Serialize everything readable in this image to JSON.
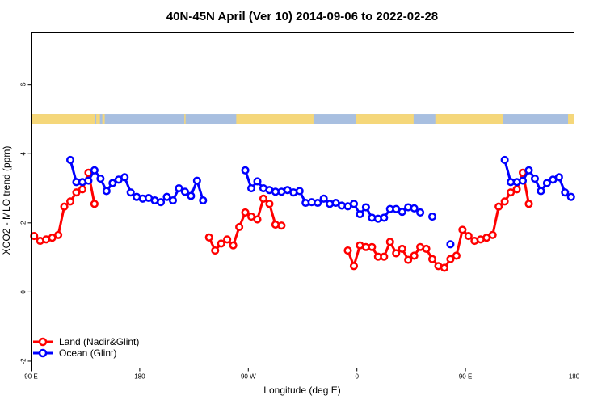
{
  "chart_data": {
    "type": "line",
    "title": "40N-45N April (Ver 10)   2014-09-06 to 2022-02-28",
    "xlabel": "Longitude (deg E)",
    "ylabel": "XCO2 - MLO trend (ppm)",
    "xlim": [
      90,
      540
    ],
    "ylim": [
      -2.2,
      7.5
    ],
    "x_ticks": [
      {
        "value": 90,
        "label": "90 E"
      },
      {
        "value": 180,
        "label": "180"
      },
      {
        "value": 270,
        "label": "90 W"
      },
      {
        "value": 360,
        "label": "0"
      },
      {
        "value": 450,
        "label": "90 E"
      },
      {
        "value": 540,
        "label": "180"
      }
    ],
    "y_ticks": [
      {
        "value": -2,
        "label": "-2"
      },
      {
        "value": 0,
        "label": "0"
      },
      {
        "value": 2,
        "label": "2"
      },
      {
        "value": 4,
        "label": "4"
      },
      {
        "value": 6,
        "label": "6"
      }
    ],
    "land_ocean_strip": {
      "y_range": [
        4.85,
        5.15
      ],
      "land_color": "#f5d77a",
      "ocean_color": "#a8bfe0",
      "land_ranges": [
        [
          90,
          143
        ],
        [
          144,
          147
        ],
        [
          149,
          151
        ],
        [
          217,
          218
        ],
        [
          260,
          324
        ],
        [
          359,
          407
        ],
        [
          425,
          481
        ],
        [
          535,
          540
        ]
      ]
    },
    "series": [
      {
        "name": "Land (Nadir&Glint)",
        "color": "#ff0000",
        "segments": [
          [
            [
              92.5,
              1.62
            ],
            [
              97.5,
              1.48
            ],
            [
              102.5,
              1.52
            ],
            [
              107.5,
              1.57
            ],
            [
              112.5,
              1.65
            ],
            [
              117.5,
              2.47
            ],
            [
              122.5,
              2.62
            ],
            [
              127.5,
              2.88
            ],
            [
              132.5,
              2.97
            ],
            [
              137.5,
              3.45
            ],
            [
              142.5,
              2.55
            ]
          ],
          [
            [
              237.5,
              1.58
            ],
            [
              242.5,
              1.2
            ],
            [
              247.5,
              1.4
            ],
            [
              252.5,
              1.52
            ],
            [
              257.5,
              1.35
            ],
            [
              262.5,
              1.88
            ],
            [
              267.5,
              2.3
            ],
            [
              272.5,
              2.18
            ],
            [
              277.5,
              2.1
            ],
            [
              282.5,
              2.7
            ],
            [
              287.5,
              2.55
            ],
            [
              292.5,
              1.95
            ],
            [
              297.5,
              1.92
            ]
          ],
          [
            [
              352.5,
              1.2
            ],
            [
              357.5,
              0.75
            ],
            [
              362.5,
              1.35
            ],
            [
              367.5,
              1.3
            ],
            [
              372.5,
              1.3
            ],
            [
              377.5,
              1.02
            ],
            [
              382.5,
              1.02
            ],
            [
              387.5,
              1.45
            ],
            [
              392.5,
              1.12
            ],
            [
              397.5,
              1.25
            ],
            [
              402.5,
              0.93
            ],
            [
              407.5,
              1.05
            ],
            [
              412.5,
              1.3
            ],
            [
              417.5,
              1.25
            ],
            [
              422.5,
              0.95
            ],
            [
              427.5,
              0.75
            ],
            [
              432.5,
              0.7
            ],
            [
              437.5,
              0.95
            ],
            [
              442.5,
              1.05
            ],
            [
              447.5,
              1.8
            ],
            [
              452.5,
              1.62
            ],
            [
              457.5,
              1.48
            ],
            [
              462.5,
              1.52
            ],
            [
              467.5,
              1.57
            ],
            [
              472.5,
              1.65
            ],
            [
              477.5,
              2.47
            ],
            [
              482.5,
              2.62
            ],
            [
              487.5,
              2.88
            ],
            [
              492.5,
              2.97
            ],
            [
              497.5,
              3.45
            ],
            [
              502.5,
              2.55
            ]
          ]
        ]
      },
      {
        "name": "Ocean (Glint)",
        "color": "#0000ff",
        "segments": [
          [
            [
              122.5,
              3.82
            ],
            [
              127.5,
              3.18
            ],
            [
              132.5,
              3.18
            ],
            [
              137.5,
              3.22
            ],
            [
              142.5,
              3.52
            ],
            [
              147.5,
              3.28
            ],
            [
              152.5,
              2.92
            ],
            [
              157.5,
              3.15
            ],
            [
              162.5,
              3.25
            ],
            [
              167.5,
              3.32
            ],
            [
              172.5,
              2.88
            ],
            [
              177.5,
              2.75
            ],
            [
              182.5,
              2.7
            ],
            [
              187.5,
              2.72
            ],
            [
              192.5,
              2.65
            ],
            [
              197.5,
              2.6
            ],
            [
              202.5,
              2.75
            ],
            [
              207.5,
              2.65
            ],
            [
              212.5,
              3.0
            ],
            [
              217.5,
              2.9
            ],
            [
              222.5,
              2.78
            ],
            [
              227.5,
              3.22
            ],
            [
              232.5,
              2.65
            ]
          ],
          [
            [
              267.5,
              3.52
            ],
            [
              272.5,
              3.0
            ],
            [
              277.5,
              3.2
            ],
            [
              282.5,
              3.0
            ],
            [
              287.5,
              2.95
            ],
            [
              292.5,
              2.9
            ],
            [
              297.5,
              2.9
            ],
            [
              302.5,
              2.95
            ],
            [
              307.5,
              2.88
            ],
            [
              312.5,
              2.92
            ],
            [
              317.5,
              2.58
            ],
            [
              322.5,
              2.6
            ],
            [
              327.5,
              2.58
            ],
            [
              332.5,
              2.7
            ],
            [
              337.5,
              2.55
            ],
            [
              342.5,
              2.58
            ],
            [
              347.5,
              2.5
            ],
            [
              352.5,
              2.48
            ],
            [
              357.5,
              2.55
            ],
            [
              362.5,
              2.25
            ],
            [
              367.5,
              2.45
            ],
            [
              372.5,
              2.15
            ],
            [
              377.5,
              2.12
            ],
            [
              382.5,
              2.15
            ],
            [
              387.5,
              2.4
            ],
            [
              392.5,
              2.4
            ],
            [
              397.5,
              2.32
            ],
            [
              402.5,
              2.45
            ],
            [
              407.5,
              2.42
            ],
            [
              412.5,
              2.3
            ]
          ],
          [
            [
              422.5,
              2.18
            ]
          ],
          [
            [
              437.5,
              1.38
            ]
          ],
          [
            [
              482.5,
              3.82
            ],
            [
              487.5,
              3.18
            ],
            [
              492.5,
              3.18
            ],
            [
              497.5,
              3.22
            ],
            [
              502.5,
              3.52
            ],
            [
              507.5,
              3.28
            ],
            [
              512.5,
              2.92
            ],
            [
              517.5,
              3.15
            ],
            [
              522.5,
              3.25
            ],
            [
              527.5,
              3.32
            ],
            [
              532.5,
              2.88
            ],
            [
              537.5,
              2.75
            ]
          ]
        ]
      }
    ],
    "legend": {
      "placement": "bottom-left",
      "boxed": false
    }
  }
}
